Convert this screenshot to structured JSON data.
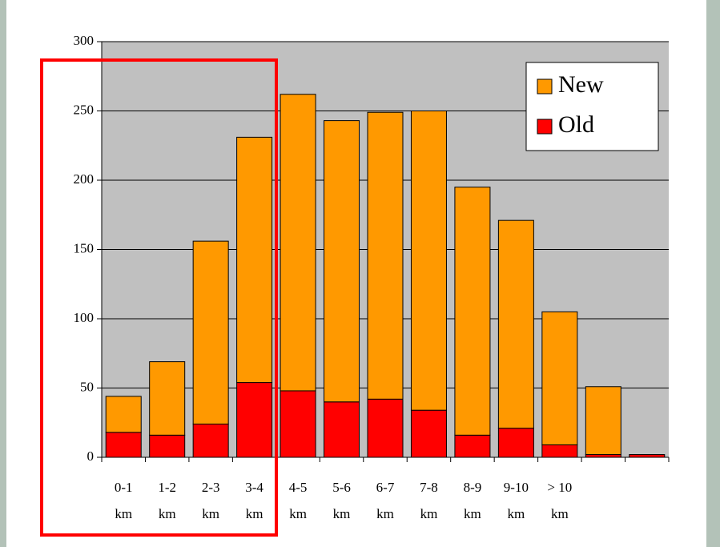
{
  "chart_data": {
    "type": "stacked_bar",
    "categories": [
      "0-1 km",
      "1-2 km",
      "2-3 km",
      "3-4 km",
      "4-5 km",
      "5-6 km",
      "6-7 km",
      "7-8 km",
      "8-9 km",
      "9-10 km",
      "> 10 km",
      null,
      null
    ],
    "series": [
      {
        "name": "Old",
        "color": "#ff0000",
        "values": [
          18,
          16,
          24,
          54,
          48,
          40,
          42,
          34,
          16,
          21,
          9,
          2,
          2
        ]
      },
      {
        "name": "New",
        "color": "#ff9900",
        "values": [
          26,
          53,
          132,
          177,
          214,
          203,
          207,
          216,
          179,
          150,
          96,
          49,
          0
        ]
      }
    ],
    "ylim": [
      0,
      300
    ],
    "yticks": [
      0,
      50,
      100,
      150,
      200,
      250,
      300
    ],
    "grid": true,
    "legend": "upper right"
  }
}
